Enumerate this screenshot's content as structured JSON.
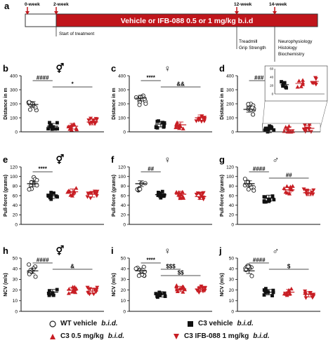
{
  "timeline": {
    "panel": "a",
    "weeks": [
      "0-week",
      "2-week",
      "12-week",
      "14-week"
    ],
    "treatment": "Vehicle or IFB-088 0.5 or 1 mg/kg b.i.d",
    "start": "Start of treatment",
    "mid_notes": [
      "Treadmill",
      "Grip Strength"
    ],
    "end_notes": [
      "Neurophysiology",
      "Histology",
      "Biochemistry"
    ],
    "bar_color": "#c0151b"
  },
  "colors": {
    "wt": "#222222",
    "c3": "#111111",
    "ifb05": "#c81e24",
    "ifb1": "#c81e24"
  },
  "legend": [
    {
      "marker": "open-circle",
      "label": "WT vehicle",
      "suffix": "b.i.d."
    },
    {
      "marker": "filled-square",
      "label": "C3 vehicle",
      "suffix": "b.i.d."
    },
    {
      "marker": "red-triangle-up",
      "label": "C3 0.5 mg/kg",
      "suffix": "b.i.d."
    },
    {
      "marker": "red-triangle-down",
      "label": "C3 IFB-088 1 mg/kg",
      "suffix": "b.i.d."
    }
  ],
  "chart_data": [
    {
      "panel": "b",
      "sex": "⚥",
      "type": "scatter",
      "ylabel": "Distance in m",
      "ylim": [
        0,
        400
      ],
      "yticks": [
        0,
        100,
        200,
        300,
        400
      ],
      "groups": [
        "WT vehicle",
        "C3 vehicle",
        "C3 0.5 mg/kg",
        "C3 IFB-088 1 mg/kg"
      ],
      "means": [
        195,
        40,
        40,
        70
      ],
      "sig": [
        {
          "text": "####",
          "from": 0,
          "to": 1
        },
        {
          "text": "*",
          "from": 1,
          "to": 3
        }
      ]
    },
    {
      "panel": "c",
      "sex": "♀",
      "type": "scatter",
      "ylabel": "Distance in m",
      "ylim": [
        0,
        400
      ],
      "yticks": [
        0,
        100,
        200,
        300,
        400
      ],
      "groups": [
        "WT vehicle",
        "C3 vehicle",
        "C3 0.5 mg/kg",
        "C3 IFB-088 1 mg/kg"
      ],
      "means": [
        240,
        55,
        50,
        100
      ],
      "sig": [
        {
          "text": "****",
          "from": 0,
          "to": 1
        },
        {
          "text": "&&",
          "from": 1,
          "to": 3
        }
      ]
    },
    {
      "panel": "d",
      "sex": "♂",
      "type": "scatter",
      "ylabel": "Distance in m",
      "ylim": [
        0,
        400
      ],
      "yticks": [
        0,
        100,
        200,
        300,
        400
      ],
      "groups": [
        "WT vehicle",
        "C3 vehicle",
        "C3 0.5 mg/kg",
        "C3 IFB-088 1 mg/kg"
      ],
      "means": [
        160,
        15,
        15,
        25
      ],
      "sig": [
        {
          "text": "###",
          "from": 0,
          "to": 1
        }
      ],
      "inset": {
        "ylabel": "Distance in m",
        "ylim": [
          0,
          60
        ],
        "yticks": [
          0,
          20,
          40,
          60
        ],
        "means": [
          22,
          25,
          30
        ]
      }
    },
    {
      "panel": "e",
      "sex": "⚥",
      "type": "scatter",
      "ylabel": "Pull-force (grams)",
      "ylim": [
        0,
        120
      ],
      "yticks": [
        0,
        20,
        40,
        60,
        80,
        100,
        120
      ],
      "groups": [
        "WT vehicle",
        "C3 vehicle",
        "C3 0.5 mg/kg",
        "C3 IFB-088 1 mg/kg"
      ],
      "means": [
        85,
        60,
        68,
        63
      ],
      "sig": [
        {
          "text": "****",
          "from": 0,
          "to": 1
        }
      ]
    },
    {
      "panel": "f",
      "sex": "♀",
      "type": "scatter",
      "ylabel": "Pull-force (grams)",
      "ylim": [
        0,
        120
      ],
      "yticks": [
        0,
        20,
        40,
        60,
        80,
        100,
        120
      ],
      "groups": [
        "WT vehicle",
        "C3 vehicle",
        "C3 0.5 mg/kg",
        "C3 IFB-088 1 mg/kg"
      ],
      "means": [
        85,
        62,
        63,
        58
      ],
      "sig": [
        {
          "text": "##",
          "from": 0,
          "to": 1
        }
      ]
    },
    {
      "panel": "g",
      "sex": "♂",
      "type": "scatter",
      "ylabel": "Pull-force (grams)",
      "ylim": [
        0,
        120
      ],
      "yticks": [
        0,
        20,
        40,
        60,
        80,
        100,
        120
      ],
      "groups": [
        "WT vehicle",
        "C3 vehicle",
        "C3 0.5 mg/kg",
        "C3 IFB-088 1 mg/kg"
      ],
      "means": [
        85,
        55,
        72,
        66
      ],
      "sig": [
        {
          "text": "####",
          "from": 0,
          "to": 1
        },
        {
          "text": "##",
          "from": 1,
          "to": 3
        }
      ]
    },
    {
      "panel": "h",
      "sex": "⚥",
      "type": "scatter",
      "ylabel": "NCV (m/s)",
      "ylim": [
        0,
        50
      ],
      "yticks": [
        0,
        10,
        20,
        30,
        40,
        50
      ],
      "groups": [
        "WT vehicle",
        "C3 vehicle",
        "C3 0.5 mg/kg",
        "C3 IFB-088 1 mg/kg"
      ],
      "means": [
        38,
        18,
        20,
        19
      ],
      "sig": [
        {
          "text": "####",
          "from": 0,
          "to": 1
        },
        {
          "text": "&",
          "from": 1,
          "to": 3
        }
      ]
    },
    {
      "panel": "i",
      "sex": "♀",
      "type": "scatter",
      "ylabel": "NCV (m/s)",
      "ylim": [
        0,
        50
      ],
      "yticks": [
        0,
        10,
        20,
        30,
        40,
        50
      ],
      "groups": [
        "WT vehicle",
        "C3 vehicle",
        "C3 0.5 mg/kg",
        "C3 IFB-088 1 mg/kg"
      ],
      "means": [
        38,
        16,
        21,
        21
      ],
      "sig": [
        {
          "text": "****",
          "from": 0,
          "to": 1
        },
        {
          "text": "$$$",
          "from": 1,
          "to": 2
        },
        {
          "text": "$$",
          "from": 1,
          "to": 3
        }
      ]
    },
    {
      "panel": "j",
      "sex": "♂",
      "type": "scatter",
      "ylabel": "NCV (m/s)",
      "ylim": [
        0,
        50
      ],
      "yticks": [
        0,
        10,
        20,
        30,
        40,
        50
      ],
      "groups": [
        "WT vehicle",
        "C3 vehicle",
        "C3 0.5 mg/kg",
        "C3 IFB-088 1 mg/kg"
      ],
      "means": [
        38,
        18,
        18,
        16
      ],
      "sig": [
        {
          "text": "####",
          "from": 0,
          "to": 1
        },
        {
          "text": "$",
          "from": 1,
          "to": 3
        }
      ]
    }
  ]
}
